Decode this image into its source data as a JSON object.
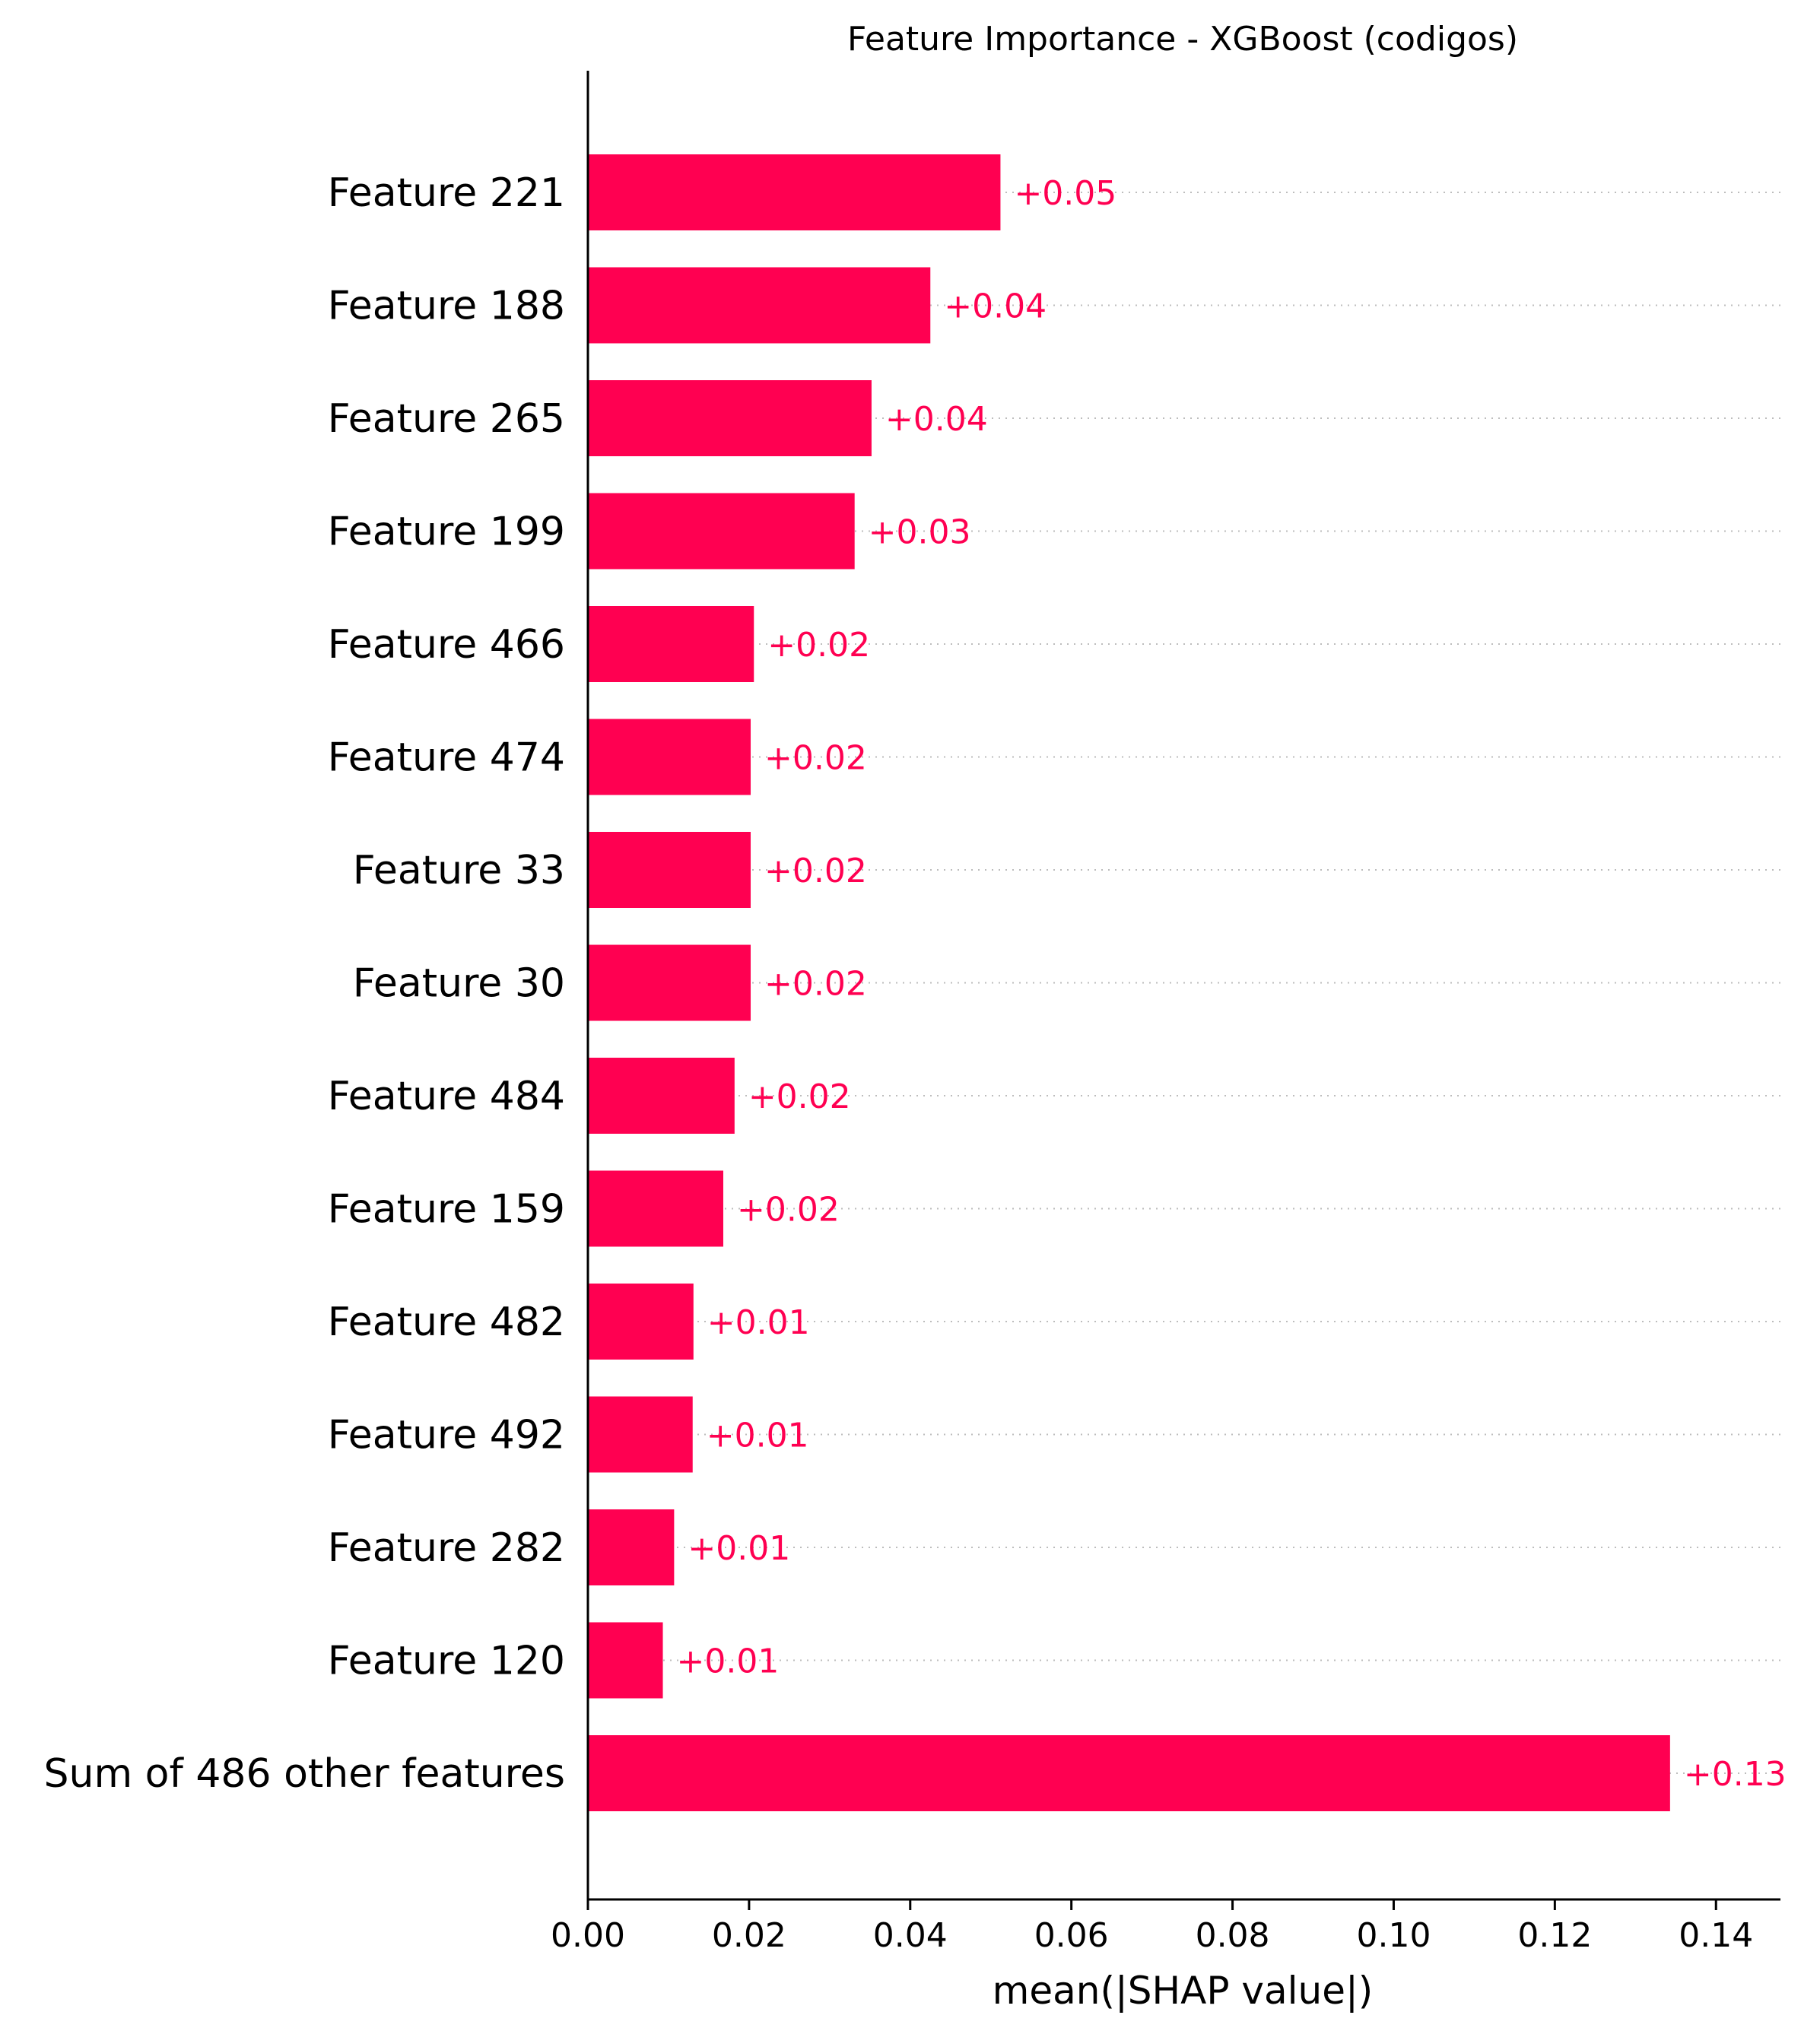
{
  "chart_data": {
    "type": "bar",
    "orientation": "horizontal",
    "title": "Feature Importance - XGBoost (codigos)",
    "xlabel": "mean(|SHAP value|)",
    "ylabel": "",
    "xlim": [
      0,
      0.148
    ],
    "xticks": [
      "0.00",
      "0.02",
      "0.04",
      "0.06",
      "0.08",
      "0.10",
      "0.12",
      "0.14"
    ],
    "grid": false,
    "bar_color": "#ff0051",
    "label_color": "#ff0051",
    "categories": [
      "Feature 221",
      "Feature 188",
      "Feature 265",
      "Feature 199",
      "Feature 466",
      "Feature 474",
      "Feature 33",
      "Feature 30",
      "Feature 484",
      "Feature 159",
      "Feature 482",
      "Feature 492",
      "Feature 282",
      "Feature 120",
      "Sum of 486 other features"
    ],
    "values": [
      0.0512,
      0.0425,
      0.0352,
      0.0331,
      0.0206,
      0.0202,
      0.0202,
      0.0202,
      0.0182,
      0.0168,
      0.0131,
      0.013,
      0.0107,
      0.0093,
      0.1343
    ],
    "data_labels": [
      "+0.05",
      "+0.04",
      "+0.04",
      "+0.03",
      "+0.02",
      "+0.02",
      "+0.02",
      "+0.02",
      "+0.02",
      "+0.02",
      "+0.01",
      "+0.01",
      "+0.01",
      "+0.01",
      "+0.13"
    ]
  }
}
